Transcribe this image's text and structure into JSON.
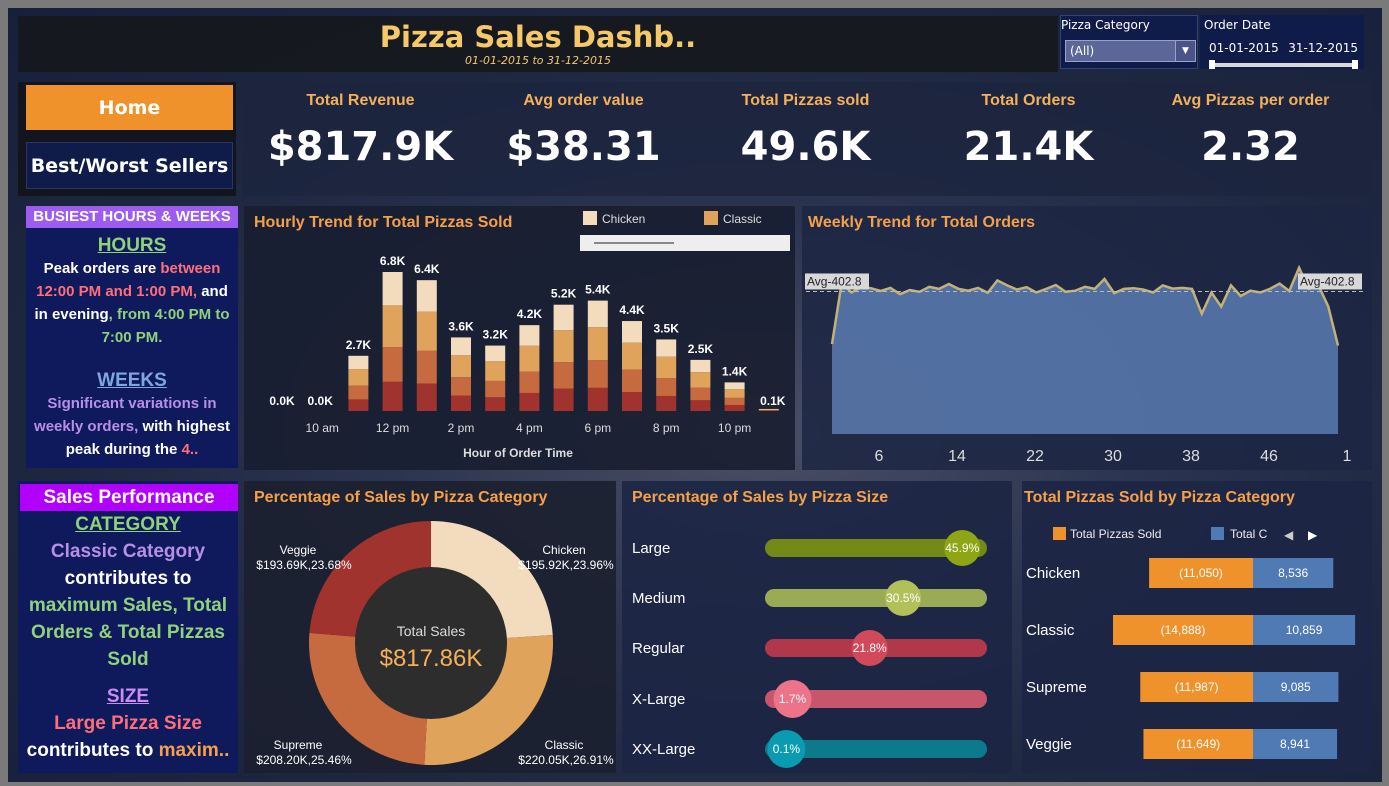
{
  "header": {
    "title": "Pizza Sales Dashb..",
    "subtitle": "01-01-2015 to 31-12-2015"
  },
  "filters": {
    "category_label": "Pizza Category",
    "category_value": "(All)",
    "date_label": "Order Date",
    "date_start": "01-01-2015",
    "date_end": "31-12-2015"
  },
  "nav": {
    "home": "Home",
    "best_worst": "Best/Worst Sellers"
  },
  "kpis": [
    {
      "label": "Total Revenue",
      "value": "$817.9K"
    },
    {
      "label": "Avg order value",
      "value": "$38.31"
    },
    {
      "label": "Total Pizzas sold",
      "value": "49.6K"
    },
    {
      "label": "Total Orders",
      "value": "21.4K"
    },
    {
      "label": "Avg Pizzas per order",
      "value": "2.32"
    }
  ],
  "insight_hours": {
    "header": "BUSIEST HOURS & WEEKS",
    "hours_title": "HOURS",
    "hours_p1": "Peak orders are ",
    "hours_p2": "between 12:00 PM and 1:00 PM,",
    "hours_p3": " and in evening",
    "hours_p4": ", from 4:00 PM to 7:00 PM.",
    "weeks_title": "WEEKS",
    "weeks_p1": "Significant variations in weekly orders,",
    "weeks_p2": " with highest peak during the ",
    "weeks_p3": "4.."
  },
  "insight_sales": {
    "header": "Sales Performance",
    "cat_title": "CATEGORY",
    "cat_p1": "Classic Category",
    "cat_p2": "contributes to",
    "cat_p3": "maximum Sales, Total Orders & Total Pizzas Sold",
    "size_title": "SIZE",
    "size_p1": "Large Pizza Size",
    "size_p2": "contributes to ",
    "size_p3": "maxim.."
  },
  "colors": {
    "chicken": "#f2dcbd",
    "classic": "#e0a35c",
    "supreme": "#c66a40",
    "veggie": "#a0332e",
    "orange": "#f0922b",
    "blue": "#4f7ab3"
  },
  "chart_data": [
    {
      "type": "bar",
      "title": "Hourly Trend for Total Pizzas Sold",
      "xlabel": "Hour of Order Time",
      "ylabel": "",
      "legend": [
        "Chicken",
        "Classic"
      ],
      "categories": [
        "9",
        "10 am",
        "11",
        "12 pm",
        "1",
        "2 pm",
        "3",
        "4 pm",
        "5",
        "6 pm",
        "7",
        "8 pm",
        "9",
        "10 pm",
        "11"
      ],
      "tick_labels": [
        "10 am",
        "12 pm",
        "2 pm",
        "4 pm",
        "6 pm",
        "8 pm",
        "10 pm"
      ],
      "values": [
        0.0,
        0.0,
        2.7,
        6.8,
        6.4,
        3.6,
        3.2,
        4.2,
        5.2,
        5.4,
        4.4,
        3.5,
        2.5,
        1.4,
        0.1
      ],
      "value_labels": [
        "0.0K",
        "0.0K",
        "2.7K",
        "6.8K",
        "6.4K",
        "3.6K",
        "3.2K",
        "4.2K",
        "5.2K",
        "5.4K",
        "4.4K",
        "3.5K",
        "2.5K",
        "1.4K",
        "0.1K"
      ],
      "stack_shares": [
        0.24,
        0.3,
        0.25,
        0.21
      ]
    },
    {
      "type": "area",
      "title": "Weekly Trend for Total Orders",
      "reference_label": "Avg-402.8",
      "reference_value": 402.8,
      "x_ticks": [
        "6",
        "14",
        "22",
        "30",
        "38",
        "46",
        "1"
      ],
      "x": [
        1,
        2,
        3,
        4,
        5,
        6,
        7,
        8,
        9,
        10,
        11,
        12,
        13,
        14,
        15,
        16,
        17,
        18,
        19,
        20,
        21,
        22,
        23,
        24,
        25,
        26,
        27,
        28,
        29,
        30,
        31,
        32,
        33,
        34,
        35,
        36,
        37,
        38,
        39,
        40,
        41,
        42,
        43,
        44,
        45,
        46,
        47,
        48,
        49,
        50,
        51,
        52,
        53
      ],
      "values": [
        254,
        427,
        400,
        415,
        412,
        404,
        413,
        395,
        407,
        402,
        416,
        410,
        424,
        410,
        405,
        413,
        399,
        434,
        420,
        408,
        415,
        400,
        410,
        421,
        402,
        405,
        416,
        410,
        438,
        398,
        410,
        412,
        408,
        400,
        420,
        411,
        413,
        410,
        340,
        400,
        360,
        420,
        390,
        405,
        400,
        410,
        425,
        404,
        470,
        410,
        420,
        360,
        250
      ],
      "ylim": [
        0,
        520
      ]
    },
    {
      "type": "pie",
      "title": "Percentage of Sales by Pizza Category",
      "center_label": "Total Sales",
      "center_value": "$817.86K",
      "categories": [
        "Chicken",
        "Classic",
        "Supreme",
        "Veggie"
      ],
      "values": [
        23.96,
        26.91,
        25.46,
        23.68
      ],
      "value_labels": [
        "$195.92K,23.96%",
        "$220.05K,26.91%",
        "$208.20K,25.46%",
        "$193.69K,23.68%"
      ]
    },
    {
      "type": "bar",
      "title": "Percentage of Sales by Pizza Size",
      "categories": [
        "Large",
        "Medium",
        "Regular",
        "X-Large",
        "XX-Large"
      ],
      "values": [
        45.9,
        30.5,
        21.8,
        1.7,
        0.1
      ],
      "value_labels": [
        "45.9%",
        "30.5%",
        "21.8%",
        "1.7%",
        "0.1%"
      ],
      "colors": [
        "#8fa614",
        "#b2c05a",
        "#d14a5c",
        "#ec7388",
        "#0a9bb0"
      ],
      "track_colors": [
        "#748a17",
        "#9aaa55",
        "#b0384a",
        "#c7556c",
        "#0b7b8c"
      ]
    },
    {
      "type": "bar",
      "title": "Total Pizzas Sold by Pizza Category",
      "legend": [
        "Total Pizzas Sold",
        "Total C"
      ],
      "categories": [
        "Chicken",
        "Classic",
        "Supreme",
        "Veggie"
      ],
      "series": [
        {
          "name": "Total Pizzas Sold",
          "values": [
            11050,
            14888,
            11987,
            11649
          ],
          "labels": [
            "(11,050)",
            "(14,888)",
            "(11,987)",
            "(11,649)"
          ]
        },
        {
          "name": "Total C",
          "values": [
            8536,
            10859,
            9085,
            8941
          ],
          "labels": [
            "8,536",
            "10,859",
            "9,085",
            "8,941"
          ]
        }
      ]
    }
  ]
}
